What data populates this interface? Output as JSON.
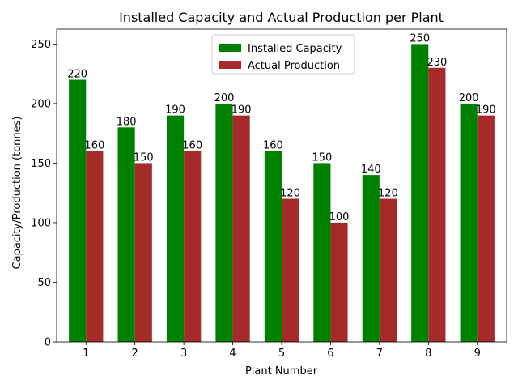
{
  "chart_data": {
    "type": "bar",
    "title": "Installed Capacity and Actual Production per Plant",
    "xlabel": "Plant Number",
    "ylabel": "Capacity/Production (tonnes)",
    "categories": [
      "1",
      "2",
      "3",
      "4",
      "5",
      "6",
      "7",
      "8",
      "9"
    ],
    "series": [
      {
        "name": "Installed Capacity",
        "color": "#008000",
        "values": [
          220,
          180,
          190,
          200,
          160,
          150,
          140,
          250,
          200
        ]
      },
      {
        "name": "Actual Production",
        "color": "#a52a2a",
        "values": [
          160,
          150,
          160,
          190,
          120,
          100,
          120,
          230,
          190
        ]
      }
    ],
    "ylim": [
      0,
      262.5
    ],
    "yticks": [
      0,
      50,
      100,
      150,
      200,
      250
    ],
    "grid": false,
    "legend_position": "upper center"
  }
}
